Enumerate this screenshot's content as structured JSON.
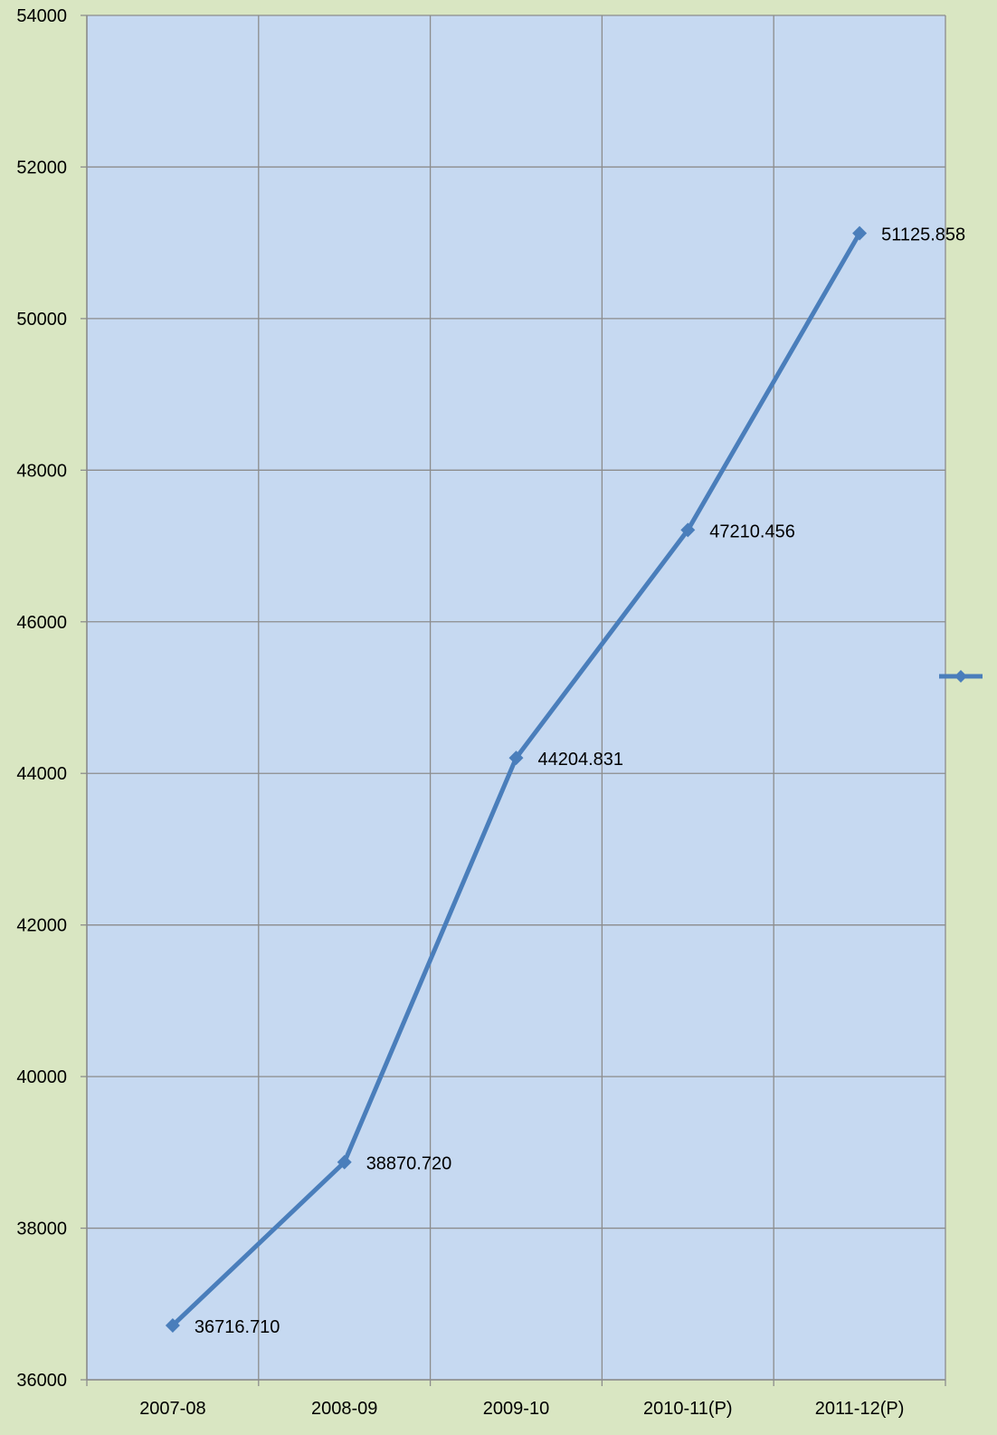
{
  "chart_data": {
    "type": "line",
    "title": "",
    "xlabel": "",
    "ylabel": "",
    "categories": [
      "2007-08",
      "2008-09",
      "2009-10",
      "2010-11(P)",
      "2011-12(P)"
    ],
    "series": [
      {
        "values": [
          36716.71,
          38870.72,
          44204.831,
          47210.456,
          51125.858
        ],
        "labels": [
          "36716.710",
          "38870.720",
          "44204.831",
          "47210.456",
          "51125.858"
        ]
      }
    ],
    "ylim": [
      36000,
      54000
    ],
    "yticks": [
      "36000",
      "38000",
      "40000",
      "42000",
      "44000",
      "46000",
      "48000",
      "50000",
      "52000",
      "54000"
    ],
    "grid": true,
    "legend": "right",
    "colors": {
      "page_background": "#d9e6c2",
      "plot_background": "#c6d9f1",
      "gridline": "#8c8c8c",
      "series": "#4a7ebb"
    }
  }
}
